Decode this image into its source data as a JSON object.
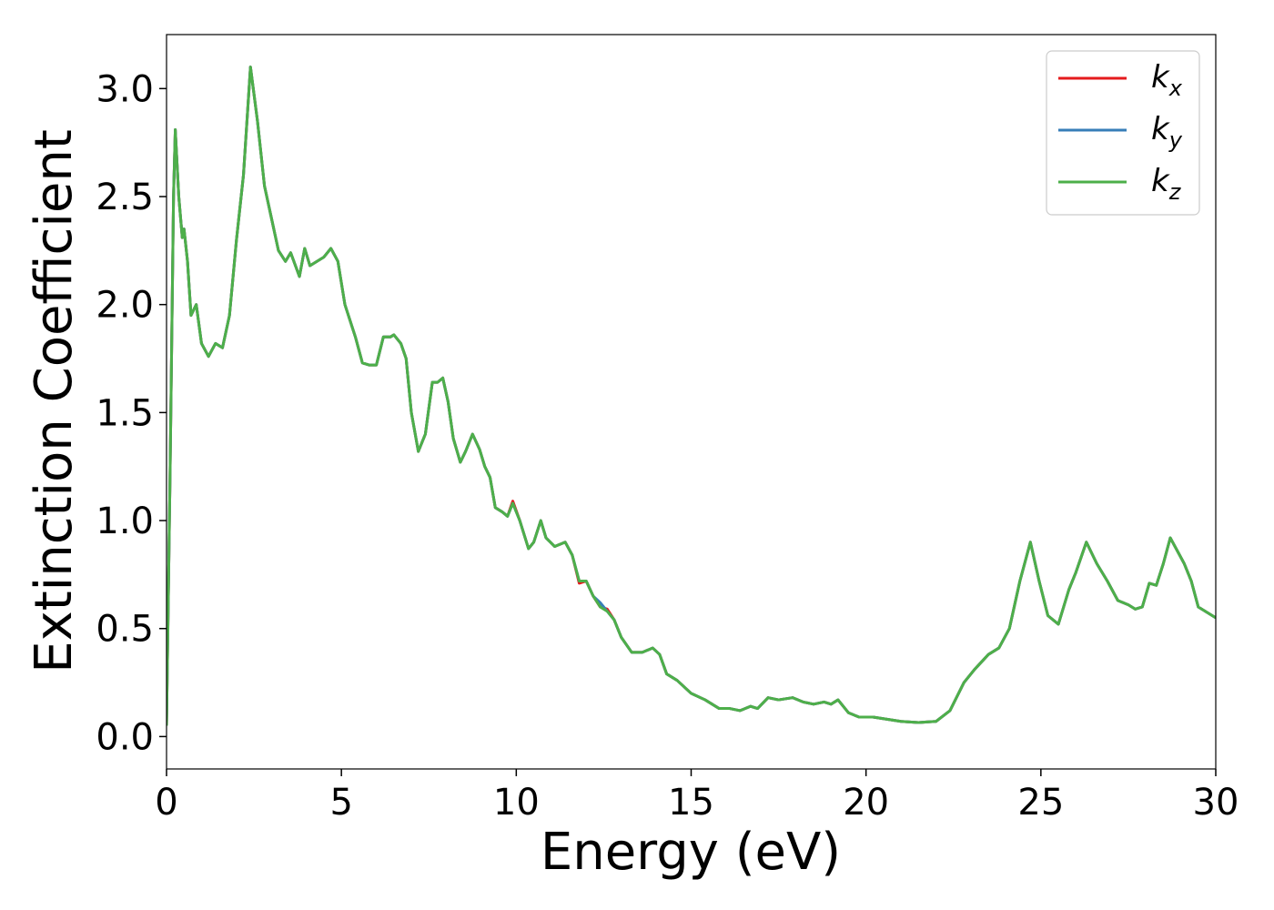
{
  "chart_data": {
    "type": "line",
    "xlabel": "Energy (eV)",
    "ylabel": "Extinction Coefficient",
    "x": [
      0,
      0.1,
      0.2,
      0.25,
      0.35,
      0.45,
      0.5,
      0.6,
      0.7,
      0.85,
      1.0,
      1.2,
      1.4,
      1.6,
      1.8,
      2.0,
      2.2,
      2.4,
      2.6,
      2.8,
      3.0,
      3.2,
      3.4,
      3.55,
      3.8,
      3.95,
      4.1,
      4.3,
      4.5,
      4.7,
      4.9,
      5.1,
      5.4,
      5.6,
      5.8,
      6.0,
      6.2,
      6.4,
      6.5,
      6.7,
      6.85,
      7.0,
      7.2,
      7.4,
      7.6,
      7.75,
      7.9,
      8.05,
      8.2,
      8.4,
      8.55,
      8.75,
      8.95,
      9.1,
      9.25,
      9.4,
      9.6,
      9.75,
      9.9,
      10.1,
      10.35,
      10.5,
      10.7,
      10.85,
      11.1,
      11.4,
      11.6,
      11.8,
      12.0,
      12.2,
      12.4,
      12.6,
      12.8,
      13.0,
      13.3,
      13.6,
      13.9,
      14.1,
      14.3,
      14.6,
      15.0,
      15.4,
      15.8,
      16.1,
      16.4,
      16.7,
      16.9,
      17.2,
      17.5,
      17.9,
      18.2,
      18.5,
      18.8,
      19.0,
      19.2,
      19.5,
      19.8,
      20.2,
      20.6,
      21.0,
      21.5,
      22.0,
      22.4,
      22.8,
      23.1,
      23.5,
      23.8,
      24.1,
      24.4,
      24.7,
      24.95,
      25.2,
      25.5,
      25.8,
      26.0,
      26.3,
      26.6,
      26.9,
      27.2,
      27.5,
      27.7,
      27.9,
      28.1,
      28.3,
      28.5,
      28.7,
      28.9,
      29.1,
      29.3,
      29.5,
      29.8,
      30.0
    ],
    "series": [
      {
        "name": "k_x",
        "color": "#e41a1c",
        "values": [
          0.05,
          1.2,
          2.5,
          2.81,
          2.5,
          2.31,
          2.35,
          2.2,
          1.95,
          2.0,
          1.82,
          1.76,
          1.82,
          1.8,
          1.95,
          2.3,
          2.6,
          3.1,
          2.85,
          2.55,
          2.4,
          2.25,
          2.2,
          2.24,
          2.13,
          2.26,
          2.18,
          2.2,
          2.22,
          2.26,
          2.2,
          2.0,
          1.85,
          1.73,
          1.72,
          1.72,
          1.85,
          1.85,
          1.86,
          1.82,
          1.75,
          1.5,
          1.32,
          1.4,
          1.64,
          1.64,
          1.66,
          1.55,
          1.38,
          1.27,
          1.32,
          1.4,
          1.33,
          1.25,
          1.2,
          1.06,
          1.04,
          1.02,
          1.09,
          1.0,
          0.87,
          0.9,
          1.0,
          0.92,
          0.88,
          0.9,
          0.84,
          0.71,
          0.72,
          0.65,
          0.6,
          0.59,
          0.54,
          0.46,
          0.39,
          0.39,
          0.41,
          0.38,
          0.29,
          0.26,
          0.2,
          0.17,
          0.13,
          0.13,
          0.12,
          0.14,
          0.13,
          0.18,
          0.17,
          0.18,
          0.16,
          0.15,
          0.16,
          0.15,
          0.17,
          0.11,
          0.09,
          0.09,
          0.08,
          0.07,
          0.065,
          0.07,
          0.12,
          0.25,
          0.31,
          0.38,
          0.41,
          0.5,
          0.72,
          0.9,
          0.72,
          0.56,
          0.52,
          0.68,
          0.76,
          0.9,
          0.8,
          0.72,
          0.63,
          0.61,
          0.59,
          0.6,
          0.71,
          0.7,
          0.8,
          0.92,
          0.86,
          0.8,
          0.72,
          0.6,
          0.57,
          0.55
        ]
      },
      {
        "name": "k_y",
        "color": "#377eb8",
        "values": [
          0.05,
          1.2,
          2.5,
          2.81,
          2.5,
          2.31,
          2.35,
          2.2,
          1.95,
          2.0,
          1.82,
          1.76,
          1.82,
          1.8,
          1.95,
          2.3,
          2.6,
          3.1,
          2.85,
          2.55,
          2.4,
          2.25,
          2.2,
          2.24,
          2.13,
          2.26,
          2.18,
          2.2,
          2.22,
          2.26,
          2.2,
          2.0,
          1.85,
          1.73,
          1.72,
          1.72,
          1.85,
          1.85,
          1.86,
          1.82,
          1.75,
          1.5,
          1.32,
          1.4,
          1.64,
          1.64,
          1.66,
          1.55,
          1.38,
          1.27,
          1.32,
          1.4,
          1.33,
          1.25,
          1.2,
          1.06,
          1.04,
          1.02,
          1.08,
          1.0,
          0.87,
          0.9,
          1.0,
          0.92,
          0.88,
          0.9,
          0.84,
          0.72,
          0.72,
          0.65,
          0.62,
          0.58,
          0.54,
          0.46,
          0.39,
          0.39,
          0.41,
          0.38,
          0.29,
          0.26,
          0.2,
          0.17,
          0.13,
          0.13,
          0.12,
          0.14,
          0.13,
          0.18,
          0.17,
          0.18,
          0.16,
          0.15,
          0.16,
          0.15,
          0.17,
          0.11,
          0.09,
          0.09,
          0.08,
          0.07,
          0.065,
          0.07,
          0.12,
          0.25,
          0.31,
          0.38,
          0.41,
          0.5,
          0.72,
          0.9,
          0.72,
          0.56,
          0.52,
          0.68,
          0.76,
          0.9,
          0.8,
          0.72,
          0.63,
          0.61,
          0.59,
          0.6,
          0.71,
          0.7,
          0.8,
          0.92,
          0.86,
          0.8,
          0.72,
          0.6,
          0.57,
          0.55
        ]
      },
      {
        "name": "k_z",
        "color": "#4daf4a",
        "values": [
          0.05,
          1.2,
          2.5,
          2.81,
          2.5,
          2.31,
          2.35,
          2.2,
          1.95,
          2.0,
          1.82,
          1.76,
          1.82,
          1.8,
          1.95,
          2.3,
          2.6,
          3.1,
          2.85,
          2.55,
          2.4,
          2.25,
          2.2,
          2.24,
          2.13,
          2.26,
          2.18,
          2.2,
          2.22,
          2.26,
          2.2,
          2.0,
          1.85,
          1.73,
          1.72,
          1.72,
          1.85,
          1.85,
          1.86,
          1.82,
          1.75,
          1.5,
          1.32,
          1.4,
          1.64,
          1.64,
          1.66,
          1.55,
          1.38,
          1.27,
          1.32,
          1.4,
          1.33,
          1.25,
          1.2,
          1.06,
          1.04,
          1.02,
          1.08,
          1.0,
          0.87,
          0.9,
          1.0,
          0.92,
          0.88,
          0.9,
          0.84,
          0.72,
          0.72,
          0.65,
          0.6,
          0.58,
          0.54,
          0.46,
          0.39,
          0.39,
          0.41,
          0.38,
          0.29,
          0.26,
          0.2,
          0.17,
          0.13,
          0.13,
          0.12,
          0.14,
          0.13,
          0.18,
          0.17,
          0.18,
          0.16,
          0.15,
          0.16,
          0.15,
          0.17,
          0.11,
          0.09,
          0.09,
          0.08,
          0.07,
          0.065,
          0.07,
          0.12,
          0.25,
          0.31,
          0.38,
          0.41,
          0.5,
          0.72,
          0.9,
          0.72,
          0.56,
          0.52,
          0.68,
          0.76,
          0.9,
          0.8,
          0.72,
          0.63,
          0.61,
          0.59,
          0.6,
          0.71,
          0.7,
          0.8,
          0.92,
          0.86,
          0.8,
          0.72,
          0.6,
          0.57,
          0.55
        ]
      }
    ],
    "xlim": [
      0,
      30
    ],
    "xticks": [
      0,
      5,
      10,
      15,
      20,
      25,
      30
    ],
    "ylim": [
      -0.15,
      3.25
    ],
    "yticks": [
      {
        "value": 0,
        "label": "0.0"
      },
      0.5,
      {
        "value": 1,
        "label": "1.0"
      },
      1.5,
      {
        "value": 2,
        "label": "2.0"
      },
      2.5,
      {
        "value": 3,
        "label": "3.0"
      }
    ],
    "grid": false,
    "legend": "upper right"
  }
}
